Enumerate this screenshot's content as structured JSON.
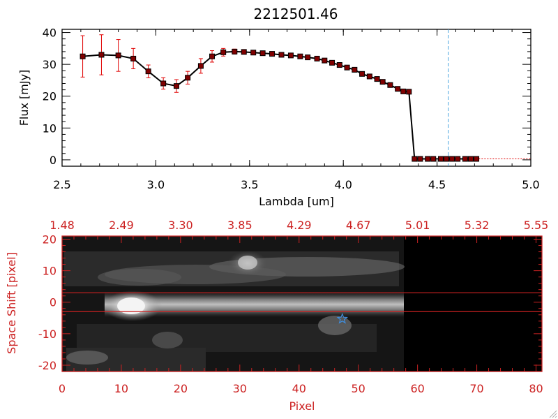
{
  "title": "2212501.46",
  "colors": {
    "spectrum_line": "#000000",
    "spectrum_marker": "#800000",
    "error_bar": "#e00000",
    "cutoff_line": "#4aa3df",
    "image_axes": "#cc2222",
    "star_marker": "#3f8fe0"
  },
  "chart_data": [
    {
      "type": "line",
      "title": "2212501.46",
      "xlabel": "Lambda [um]",
      "ylabel": "Flux [mJy]",
      "xlim": [
        2.5,
        5.0
      ],
      "ylim": [
        -2,
        41
      ],
      "x_ticks": [
        "2.5",
        "3.0",
        "3.5",
        "4.0",
        "4.5",
        "5.0"
      ],
      "y_ticks": [
        "0",
        "10",
        "20",
        "30",
        "40"
      ],
      "grid": false,
      "cutoff_line_x": 4.56,
      "x": [
        2.61,
        2.71,
        2.8,
        2.88,
        2.96,
        3.04,
        3.11,
        3.17,
        3.24,
        3.3,
        3.36,
        3.42,
        3.47,
        3.52,
        3.57,
        3.62,
        3.67,
        3.72,
        3.77,
        3.81,
        3.86,
        3.9,
        3.94,
        3.98,
        4.02,
        4.06,
        4.1,
        4.14,
        4.18,
        4.21,
        4.25,
        4.29,
        4.32,
        4.35,
        4.38,
        4.41,
        4.45,
        4.48,
        4.52,
        4.55,
        4.58,
        4.61,
        4.65,
        4.68,
        4.71
      ],
      "series": [
        {
          "values": [
            32.5,
            33.0,
            32.8,
            31.8,
            27.8,
            24.0,
            23.2,
            25.8,
            29.5,
            32.5,
            33.8,
            34.0,
            33.9,
            33.7,
            33.5,
            33.3,
            33.0,
            32.8,
            32.5,
            32.2,
            31.8,
            31.2,
            30.5,
            29.8,
            29.0,
            28.3,
            27.0,
            26.2,
            25.4,
            24.5,
            23.5,
            22.3,
            21.5,
            21.4,
            0.3,
            0.3,
            0.3,
            0.3,
            0.3,
            0.3,
            0.3,
            0.3,
            0.3,
            0.3,
            0.3
          ],
          "errors": [
            6.5,
            6.3,
            5.0,
            3.2,
            2.0,
            1.8,
            2.0,
            2.0,
            2.3,
            1.8,
            1.2,
            0.8,
            0.7,
            0.7,
            0.7,
            0.7,
            0.7,
            0.7,
            0.7,
            0.7,
            0.7,
            0.7,
            0.7,
            0.7,
            0.7,
            0.7,
            0.7,
            0.7,
            0.7,
            0.7,
            0.7,
            0.7,
            0.7,
            0.7,
            0,
            0,
            0,
            0,
            0,
            0,
            0,
            0,
            0,
            0,
            0
          ]
        }
      ]
    },
    {
      "type": "heatmap",
      "xlabel": "Pixel",
      "ylabel": "Space Shift [pixel]",
      "xlim": [
        0,
        81
      ],
      "ylim": [
        -22,
        21
      ],
      "x_ticks": [
        "0",
        "10",
        "20",
        "30",
        "40",
        "50",
        "60",
        "70",
        "80"
      ],
      "y_ticks": [
        "-20",
        "-10",
        "0",
        "10",
        "20"
      ],
      "top_ticks": [
        "1.48",
        "2.49",
        "3.30",
        "3.85",
        "4.29",
        "4.67",
        "5.01",
        "5.32",
        "5.55"
      ],
      "aperture_lines_y": [
        3,
        -3
      ],
      "star_marker": {
        "x": 47.3,
        "y": -5.3
      },
      "data_extent_pixel_max": 58
    }
  ]
}
